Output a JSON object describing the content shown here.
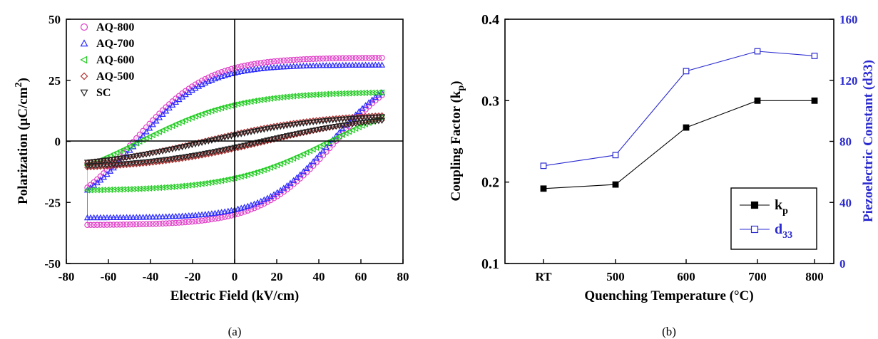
{
  "captions": {
    "a": "(a)",
    "b": "(b)"
  },
  "chart_data": [
    {
      "type": "scatter",
      "panel": "(a)",
      "xlabel": "Electric Field (kV/cm)",
      "ylabel_main": "Polarization  (μC/cm",
      "ylabel_sup": "2",
      "ylabel_tail": ")",
      "xlim": [
        -80,
        80
      ],
      "ylim": [
        -50,
        50
      ],
      "xticks": [
        "-80",
        "-60",
        "-40",
        "-20",
        "0",
        "20",
        "40",
        "60",
        "80"
      ],
      "yticks": [
        "-50",
        "-25",
        "0",
        "25",
        "50"
      ],
      "legend_position": "top-left",
      "series": [
        {
          "name": "AQ-800",
          "marker": "circle",
          "color": "#e040c8",
          "Emax": 70,
          "Pmax": 34,
          "Pr": 30,
          "Ec": 48
        },
        {
          "name": "AQ-700",
          "marker": "triangle-up",
          "color": "#2a2aff",
          "Emax": 70,
          "Pmax": 31,
          "Pr": 28,
          "Ec": 46
        },
        {
          "name": "AQ-600",
          "marker": "triangle-left",
          "color": "#22cc22",
          "Emax": 70,
          "Pmax": 20,
          "Pr": 15,
          "Ec": 45
        },
        {
          "name": "AQ-500",
          "marker": "diamond",
          "color": "#b03030",
          "Emax": 70,
          "Pmax": 11.5,
          "Pr": 3,
          "Ec": 15
        },
        {
          "name": "SC",
          "marker": "triangle-down",
          "color": "#222222",
          "Emax": 70,
          "Pmax": 11,
          "Pr": 2.5,
          "Ec": 13
        }
      ]
    },
    {
      "type": "line",
      "panel": "(b)",
      "xlabel": "Quenching Temperature (°C)",
      "categories": [
        "RT",
        "500",
        "600",
        "700",
        "800"
      ],
      "ylabel_left_main": "Coupling Factor (k",
      "ylabel_left_sub": "p",
      "ylabel_left_tail": ")",
      "ylabel_right": "Piezoelectric Constant (d33)",
      "ylim_left": [
        0.1,
        0.4
      ],
      "ylim_right": [
        0,
        160
      ],
      "yticks_left": [
        "0.1",
        "0.2",
        "0.3",
        "0.4"
      ],
      "yticks_right": [
        "0",
        "40",
        "80",
        "120",
        "160"
      ],
      "legend_position": "bottom-right",
      "series": [
        {
          "name": "k",
          "name_sub": "p",
          "axis": "left",
          "color": "#000000",
          "marker": "filled-square",
          "values": [
            0.192,
            0.197,
            0.267,
            0.3,
            0.3
          ]
        },
        {
          "name": "d",
          "name_sub": "33",
          "axis": "right",
          "color": "#2a2ad0",
          "marker": "open-square",
          "values": [
            64,
            71,
            126,
            139,
            136
          ]
        }
      ]
    }
  ]
}
